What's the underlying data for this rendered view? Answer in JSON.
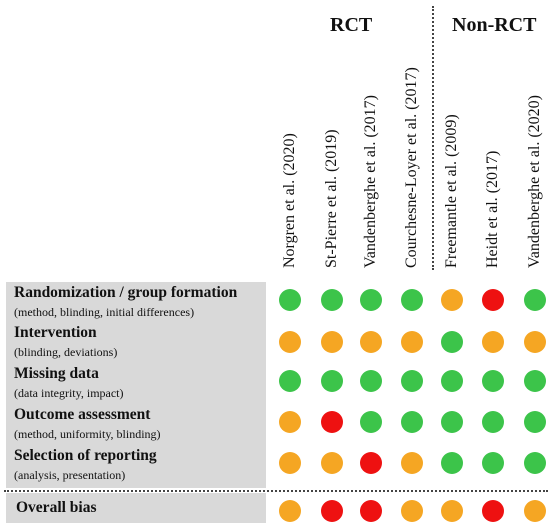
{
  "groups": {
    "rct": "RCT",
    "non_rct": "Non-RCT"
  },
  "colors": {
    "low": "#3cc44a",
    "some": "#f5a623",
    "high": "#ee1111"
  },
  "studies": [
    "Norgren et al. (2020)",
    "St-Pierre et al. (2019)",
    "Vandenberghe et al. (2017)",
    "Courchesne-Loyer et al. (2017)",
    "Freemantle et al. (2009)",
    "Heidt et al. (2017)",
    "Vandenberghe et al. (2020)"
  ],
  "domains": [
    {
      "title": "Randomization / group formation",
      "subtitle": "(method, blinding, initial differences)",
      "ratings": [
        "low",
        "low",
        "low",
        "low",
        "some",
        "high",
        "low"
      ]
    },
    {
      "title": "Intervention",
      "subtitle": "(blinding, deviations)",
      "ratings": [
        "some",
        "some",
        "some",
        "some",
        "low",
        "some",
        "some"
      ]
    },
    {
      "title": "Missing data",
      "subtitle": "(data integrity, impact)",
      "ratings": [
        "low",
        "low",
        "low",
        "low",
        "low",
        "low",
        "low"
      ]
    },
    {
      "title": "Outcome assessment",
      "subtitle": "(method, uniformity, blinding)",
      "ratings": [
        "some",
        "high",
        "low",
        "low",
        "low",
        "low",
        "low"
      ]
    },
    {
      "title": "Selection of reporting",
      "subtitle": "(analysis, presentation)",
      "ratings": [
        "some",
        "some",
        "high",
        "some",
        "low",
        "low",
        "low"
      ]
    }
  ],
  "overall": {
    "title": "Overall bias",
    "ratings": [
      "some",
      "high",
      "high",
      "some",
      "some",
      "high",
      "some"
    ]
  }
}
